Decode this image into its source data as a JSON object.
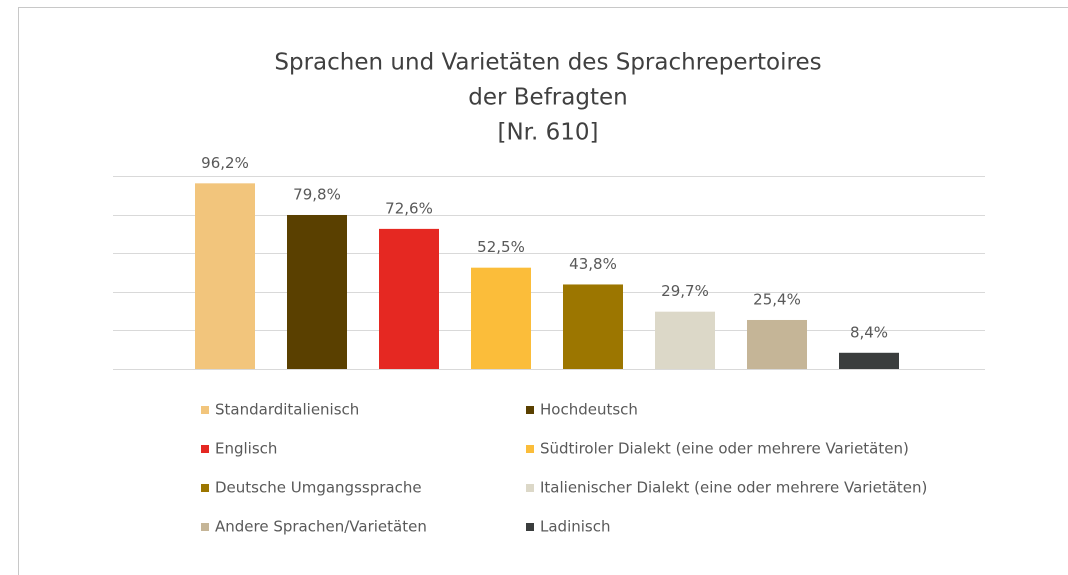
{
  "chart_data": {
    "type": "bar",
    "title": [
      "Sprachen und Varietäten des Sprachrepertoires",
      "der Befragten",
      "[Nr. 610]"
    ],
    "categories": [
      "Standarditalienisch",
      "Hochdeutsch",
      "Englisch",
      "Südtiroler Dialekt (eine oder mehrere Varietäten)",
      "Deutsche Umgangssprache",
      "Italienischer Dialekt (eine oder mehrere Varietäten)",
      "Andere Sprachen/Varietäten",
      "Ladinisch"
    ],
    "values": [
      96.2,
      79.8,
      72.6,
      52.5,
      43.8,
      29.7,
      25.4,
      8.4
    ],
    "value_labels": [
      "96,2%",
      "79,8%",
      "72,6%",
      "52,5%",
      "43,8%",
      "29,7%",
      "25,4%",
      "8,4%"
    ],
    "colors": [
      "#f2c57c",
      "#5a4000",
      "#e52822",
      "#fbbd3a",
      "#9c7600",
      "#dcd8c8",
      "#c5b597",
      "#3a3d3d"
    ],
    "ylim": [
      0,
      100
    ],
    "yticks": [
      0,
      20,
      40,
      60,
      80,
      100
    ],
    "grid": true
  }
}
